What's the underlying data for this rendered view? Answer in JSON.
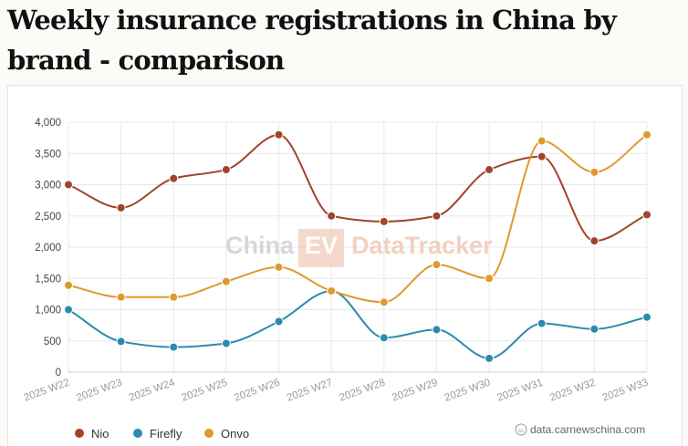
{
  "title": "Weekly insurance registrations in China by brand - comparison",
  "watermark": {
    "left": "China",
    "badge": "EV",
    "right": "DataTracker"
  },
  "source": "data.carnewschina.com",
  "source_icon": "cc-license-icon",
  "colors": {
    "Nio": "#a0442a",
    "Firefly": "#2a8cad",
    "Onvo": "#de9a2c"
  },
  "chart_data": {
    "type": "line",
    "title": "Weekly insurance registrations in China by brand - comparison",
    "xlabel": "",
    "ylabel": "",
    "ylim": [
      0,
      4000
    ],
    "yticks": [
      0,
      500,
      1000,
      1500,
      2000,
      2500,
      3000,
      3500,
      4000
    ],
    "ytick_labels": [
      "0",
      "500",
      "1,000",
      "1,500",
      "2,000",
      "2,500",
      "3,000",
      "3,500",
      "4,000"
    ],
    "grid": true,
    "smooth": true,
    "legend_position": "bottom-left",
    "categories": [
      "2025 W22",
      "2025 W23",
      "2025 W24",
      "2025 W25",
      "2025 W26",
      "2025 W27",
      "2025 W28",
      "2025 W29",
      "2025 W30",
      "2025 W31",
      "2025 W32",
      "2025 W33"
    ],
    "series": [
      {
        "name": "Nio",
        "color": "#a0442a",
        "values": [
          3000,
          2630,
          3100,
          3240,
          3800,
          2500,
          2410,
          2500,
          3240,
          3450,
          2100,
          2520
        ]
      },
      {
        "name": "Firefly",
        "color": "#2a8cad",
        "values": [
          1000,
          490,
          400,
          460,
          810,
          1300,
          550,
          680,
          220,
          780,
          690,
          880
        ]
      },
      {
        "name": "Onvo",
        "color": "#de9a2c",
        "values": [
          1390,
          1200,
          1200,
          1450,
          1680,
          1300,
          1120,
          1720,
          1500,
          3700,
          3200,
          3800
        ]
      }
    ]
  }
}
